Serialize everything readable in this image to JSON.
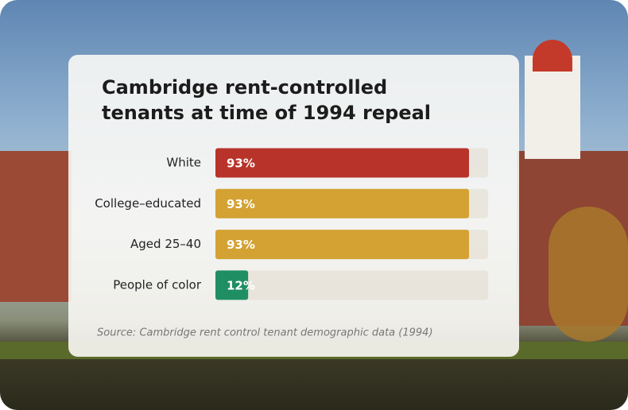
{
  "chart_data": {
    "type": "bar",
    "orientation": "horizontal",
    "title": "Cambridge rent-controlled tenants at time of 1994 repeal",
    "categories": [
      "White",
      "College–educated",
      "Aged 25–40",
      "People of color"
    ],
    "values": [
      93,
      93,
      93,
      12
    ],
    "value_labels": [
      "93%",
      "93%",
      "93%",
      "12%"
    ],
    "colors": [
      "#b8332a",
      "#d3a233",
      "#d3a233",
      "#1f8e63"
    ],
    "xlim": [
      0,
      100
    ],
    "source": "Source: Cambridge rent control tenant demographic data (1994)"
  }
}
